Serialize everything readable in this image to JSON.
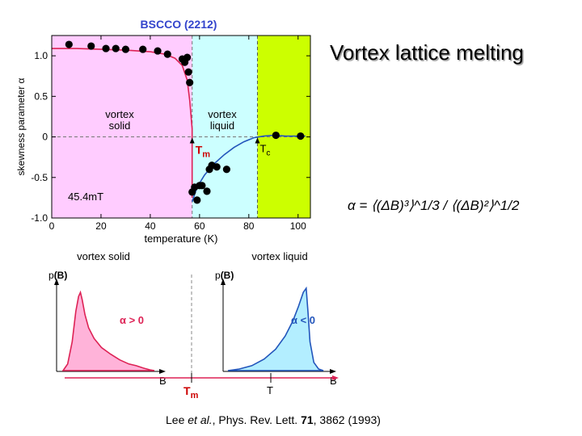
{
  "slide": {
    "title": "Vortex lattice melting",
    "formula": "α = ⟨(ΔB)³⟩^1/3 / ⟨(ΔB)²⟩^1/2",
    "citation": {
      "authors": "Lee ",
      "etal": "et al.",
      "journal": ",  Phys. Rev. Lett. ",
      "volume": "71",
      "pages": ", 3862 (1993)"
    }
  },
  "colors": {
    "solid_region": "#ffccff",
    "liquid_region": "#ccffff",
    "above_tc_region": "#ccff00",
    "fit_solid": "#dd2255",
    "fit_liquid": "#2255bb",
    "marker": "#000000",
    "tm_label": "#cc0000"
  },
  "chart_data": [
    {
      "type": "scatter",
      "title": "BSCCO (2212)",
      "xlabel": "temperature (K)",
      "ylabel": "skewness parameter α",
      "xlim": [
        0,
        105
      ],
      "ylim": [
        -1.0,
        1.25
      ],
      "xticks": [
        0,
        20,
        40,
        60,
        80,
        100
      ],
      "yticks": [
        1.0,
        0.5,
        0,
        -0.5,
        -1.0
      ],
      "ytick_labels": [
        "1.0",
        "0.5",
        "0",
        "-0.5",
        "-1.0"
      ],
      "regions": [
        {
          "label": "vortex solid",
          "line1": "vortex",
          "line2": "solid",
          "from": 0,
          "to": 57
        },
        {
          "label": "vortex liquid",
          "line1": "vortex",
          "line2": "liquid",
          "from": 57,
          "to": 83.5
        },
        {
          "label": "above Tc",
          "from": 83.5,
          "to": 105
        }
      ],
      "field_label": "45.4mT",
      "tm_label": "T",
      "tm_sub": "m",
      "tc_label": "T",
      "tc_sub": "c",
      "Tm": 57,
      "Tc": 83.5,
      "series": [
        {
          "x": [
            7,
            16,
            22,
            26,
            30,
            37,
            43,
            47,
            53,
            54,
            55,
            55.5,
            56,
            57,
            58,
            59,
            60,
            61,
            63,
            64,
            65,
            67,
            71,
            91,
            101
          ],
          "y": [
            1.14,
            1.12,
            1.09,
            1.09,
            1.08,
            1.08,
            1.06,
            1.02,
            0.96,
            0.92,
            0.98,
            0.8,
            0.67,
            -0.68,
            -0.62,
            -0.78,
            -0.6,
            -0.6,
            -0.67,
            -0.4,
            -0.35,
            -0.37,
            -0.4,
            0.02,
            0.01
          ]
        }
      ],
      "fit_curves": [
        {
          "name": "solid fit",
          "x": [
            0,
            10,
            20,
            30,
            40,
            46,
            50,
            53,
            55,
            56,
            57,
            57
          ],
          "y": [
            1.09,
            1.09,
            1.08,
            1.07,
            1.05,
            1.02,
            0.97,
            0.88,
            0.7,
            0.45,
            0.1,
            -0.75
          ]
        },
        {
          "name": "liquid fit",
          "x": [
            57,
            59,
            62,
            66,
            70,
            74,
            78,
            82,
            86,
            90,
            95,
            103
          ],
          "y": [
            -0.8,
            -0.62,
            -0.47,
            -0.33,
            -0.22,
            -0.13,
            -0.06,
            -0.01,
            0.01,
            0.02,
            0.01,
            0.01
          ]
        }
      ]
    },
    {
      "type": "area",
      "title": "vortex solid",
      "ylabel_prefix": "p",
      "ylabel_var": "(B)",
      "xlabel": "B",
      "annotation": "α > 0",
      "series": [
        {
          "x": [
            0,
            0.05,
            0.1,
            0.14,
            0.17,
            0.19,
            0.21,
            0.24,
            0.28,
            0.34,
            0.42,
            0.52,
            0.62,
            0.72,
            0.8,
            0.88,
            0.95,
            1.0
          ],
          "y": [
            0,
            0.08,
            0.35,
            0.72,
            0.9,
            0.95,
            0.86,
            0.68,
            0.52,
            0.39,
            0.28,
            0.2,
            0.13,
            0.08,
            0.06,
            0.03,
            0.01,
            0
          ]
        }
      ]
    },
    {
      "type": "area",
      "title": "vortex liquid",
      "ylabel_prefix": "p",
      "ylabel_var": "(B)",
      "xlabel": "B",
      "annotation": "α < 0",
      "series": [
        {
          "x": [
            0,
            0.12,
            0.25,
            0.38,
            0.5,
            0.6,
            0.68,
            0.74,
            0.79,
            0.82,
            0.84,
            0.86,
            0.9,
            0.95,
            1.0
          ],
          "y": [
            0,
            0.02,
            0.06,
            0.14,
            0.26,
            0.42,
            0.6,
            0.78,
            0.95,
            1.0,
            0.7,
            0.35,
            0.1,
            0.02,
            0
          ]
        }
      ]
    }
  ],
  "bottom": {
    "tm_label": "T",
    "tm_sub": "m",
    "t_axis_label": "T"
  }
}
